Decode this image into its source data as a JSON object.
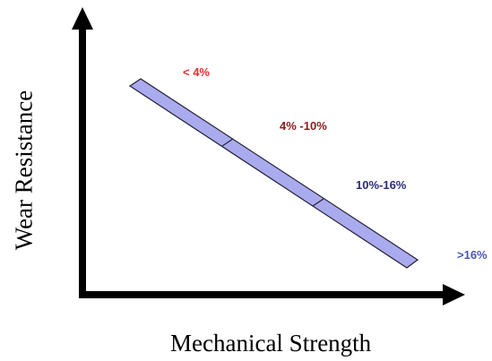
{
  "axes": {
    "y_label": "Wear Resistance",
    "x_label": "Mechanical Strength"
  },
  "colors": {
    "axis": "#000000",
    "band_fill": "#aaaaee",
    "band_stroke": "#222233"
  },
  "ranges": [
    {
      "label": "< 4%",
      "color": "#e03030"
    },
    {
      "label": "4% -10%",
      "color": "#8b1a1a"
    },
    {
      "label": "10%-16%",
      "color": "#2b2b7a"
    },
    {
      "label": ">16%",
      "color": "#4a56b0"
    }
  ]
}
